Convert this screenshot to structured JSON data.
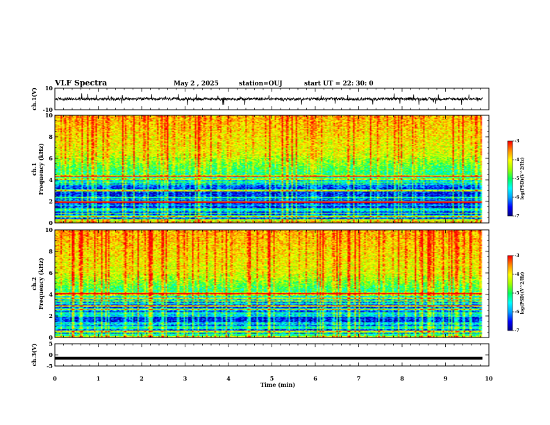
{
  "header": {
    "title": "VLF Spectra",
    "date": "May 2 , 2025",
    "station": "station=OUJ",
    "start": "start UT =  22: 30: 0"
  },
  "chart_data": [
    {
      "type": "line",
      "ylabel": "ch.1(V)",
      "ylim": [
        -10,
        10
      ],
      "yticks": [
        "10",
        "-10"
      ],
      "xlim": [
        0,
        10
      ],
      "trace": {
        "baseline": 0,
        "noise_amplitude": 1.3,
        "spike_max": 5.6
      }
    },
    {
      "type": "heatmap",
      "ylabel_line1": "ch.1",
      "ylabel_line2": "Frequency (kHz)",
      "ylim": [
        0,
        10
      ],
      "yticks": [
        "0",
        "2",
        "4",
        "6",
        "8",
        "10"
      ],
      "xlim": [
        0,
        10
      ],
      "colorbar": {
        "label": "log(PSD)(V^2/Hz)",
        "min": -7,
        "max": -3,
        "ticks": [
          "-3",
          "-4",
          "-5",
          "-6",
          "-7"
        ]
      },
      "profile": {
        "quiet_below_khz": 3.2,
        "mid_khz": 4.5,
        "hot_above_khz": 6.5
      }
    },
    {
      "type": "heatmap",
      "ylabel_line1": "ch.2",
      "ylabel_line2": "Frequency (kHz)",
      "ylim": [
        0,
        10
      ],
      "yticks": [
        "0",
        "2",
        "4",
        "6",
        "8",
        "10"
      ],
      "xlim": [
        0,
        10
      ],
      "colorbar": {
        "label": "log(PSD)(V^2/Hz)",
        "min": -7,
        "max": -3,
        "ticks": [
          "-3",
          "-4",
          "-5",
          "-6",
          "-7"
        ]
      },
      "profile": {
        "quiet_below_khz": 3.0,
        "mid_khz": 4.2,
        "hot_above_khz": 6.0
      }
    },
    {
      "type": "line",
      "ylabel": "ch.3(V)",
      "ylim": [
        -5,
        5
      ],
      "yticks": [
        "5",
        "0",
        "-5"
      ],
      "xlim": [
        0,
        10
      ],
      "trace": {
        "constant": -1.5
      }
    }
  ],
  "xaxis": {
    "label": "Time (min)",
    "ticks": [
      "0",
      "1",
      "2",
      "3",
      "4",
      "5",
      "6",
      "7",
      "8",
      "9",
      "10"
    ],
    "range": [
      0,
      10
    ]
  },
  "colors": {
    "colormap": [
      "#000080",
      "#0000ff",
      "#00a0ff",
      "#00ffff",
      "#00ff60",
      "#a0ff00",
      "#ffff00",
      "#ff9000",
      "#ff0000",
      "#ffffff"
    ]
  }
}
